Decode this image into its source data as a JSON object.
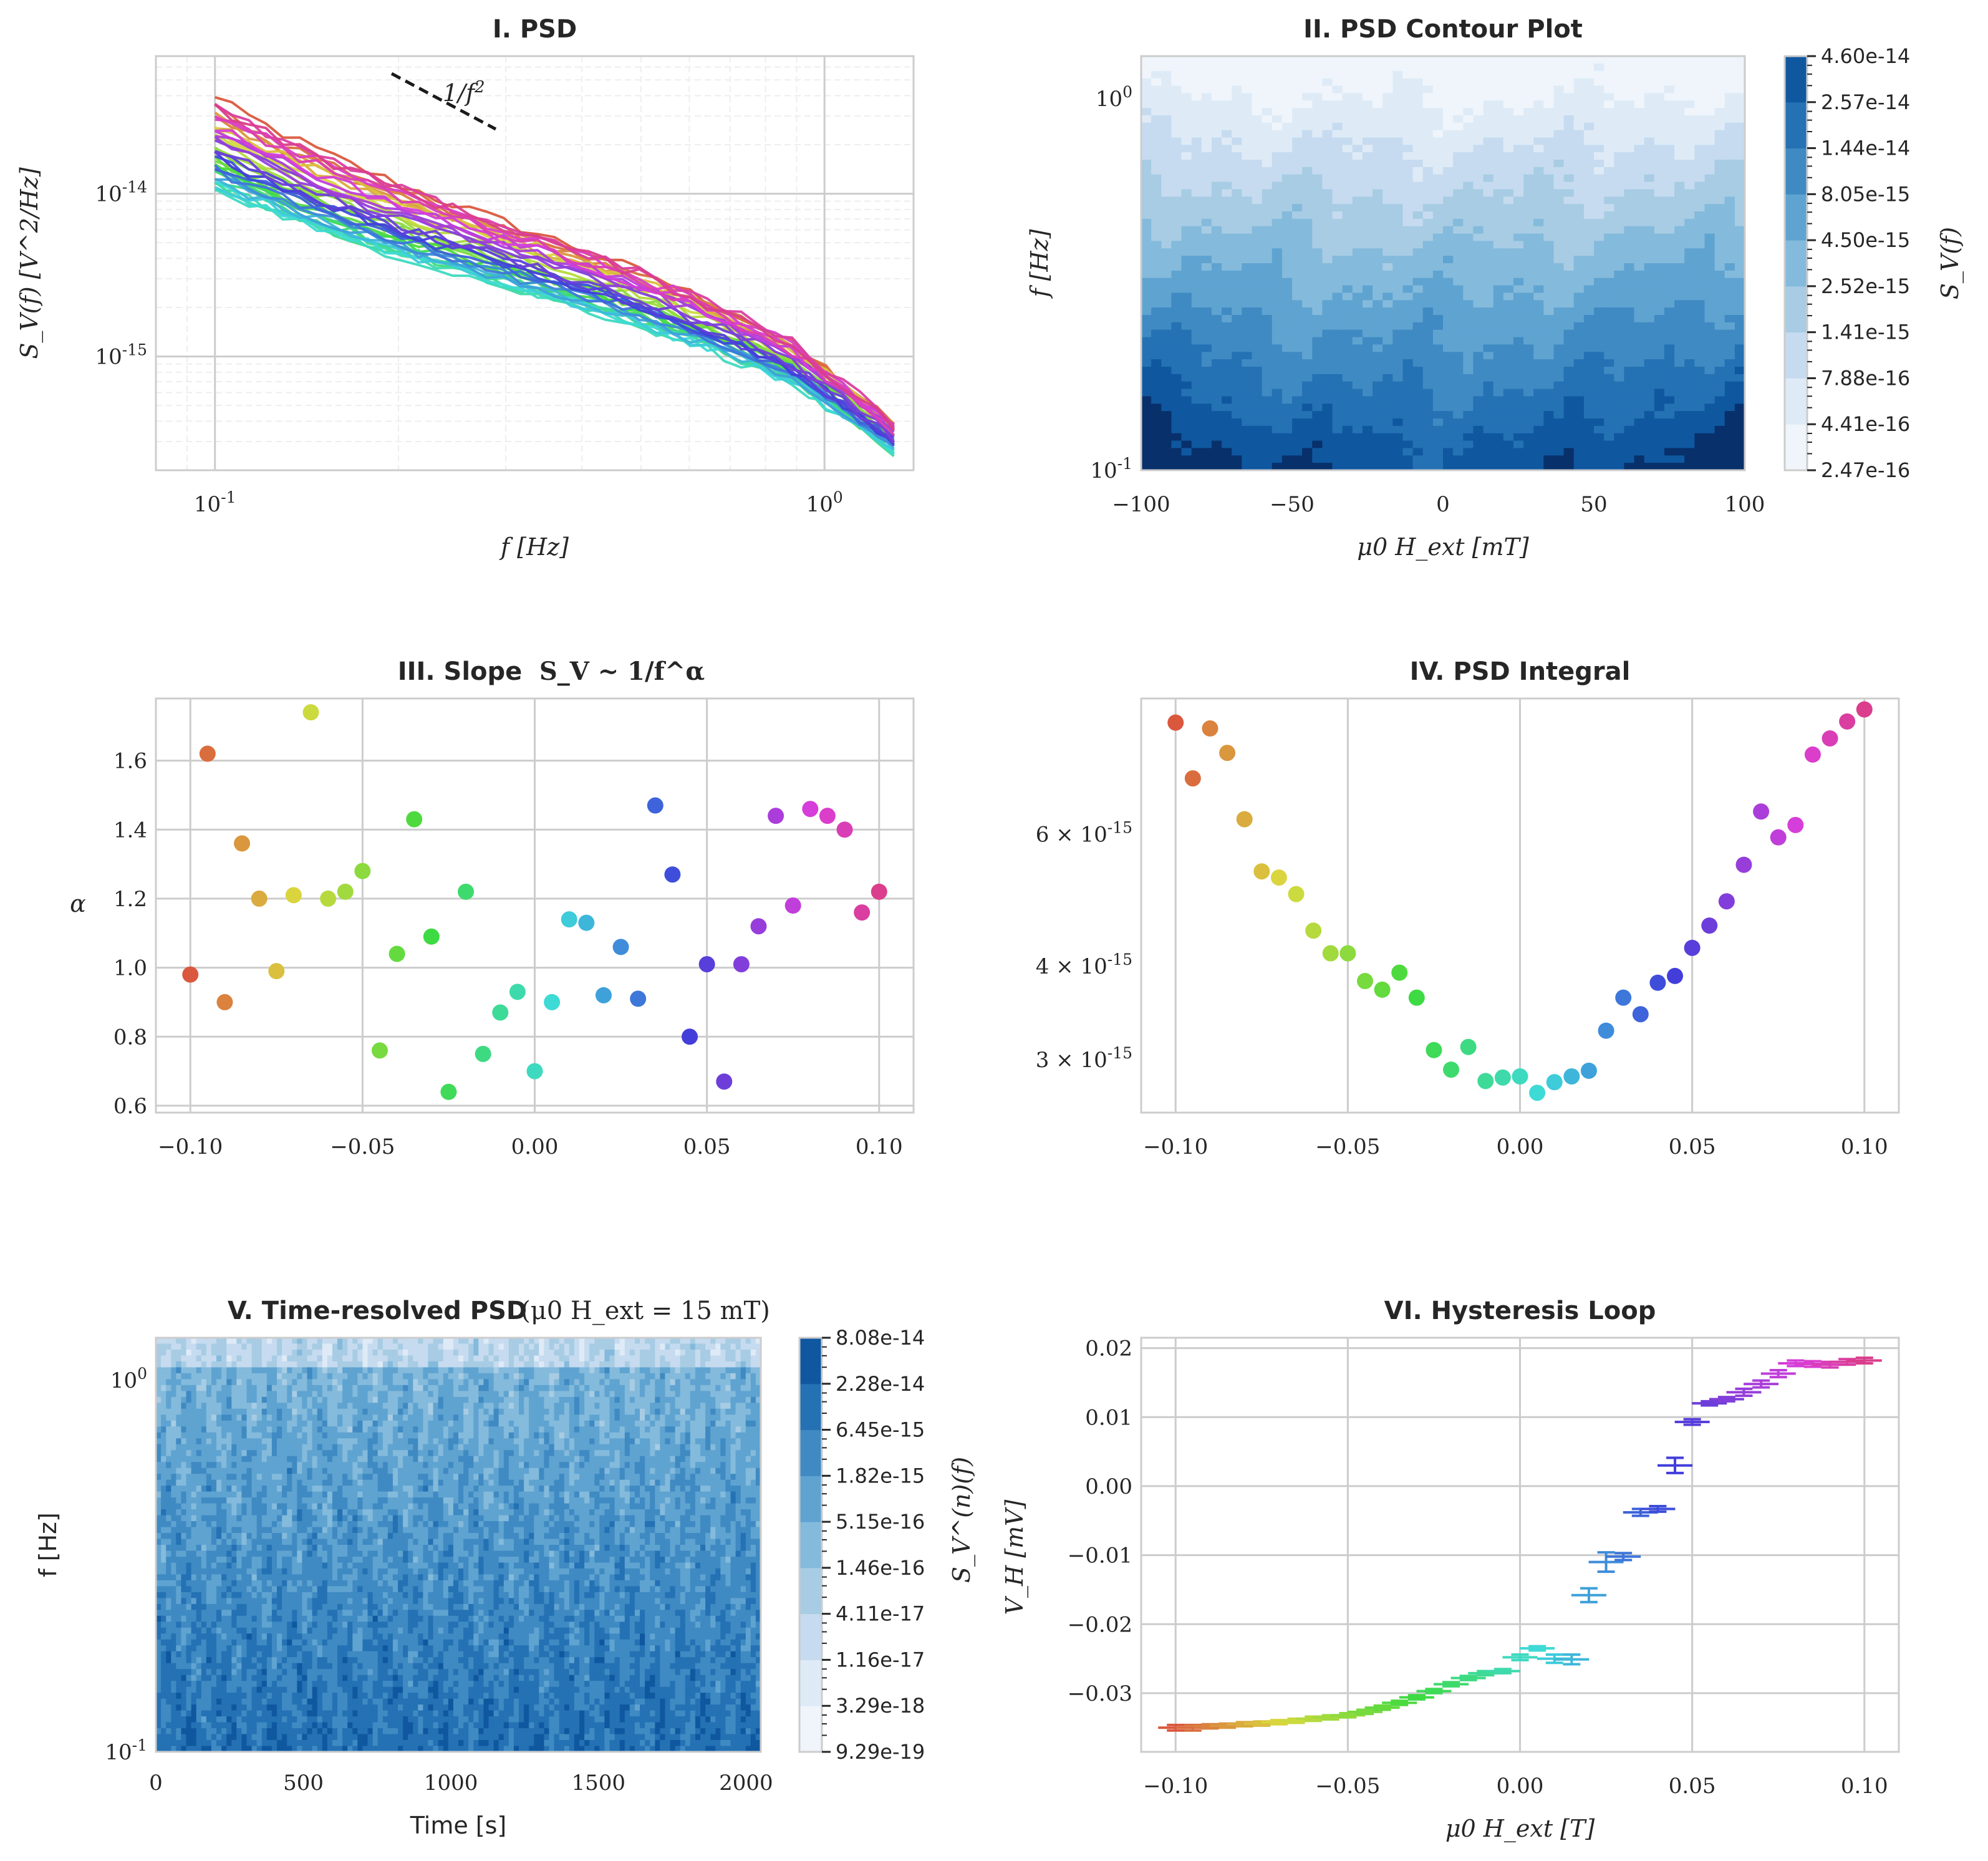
{
  "chart_data": [
    {
      "id": "p1",
      "type": "line",
      "title": "I. PSD",
      "xlabel": "f [Hz]",
      "ylabel": "S_V(f) [V^2/Hz]",
      "xscale": "log",
      "yscale": "log",
      "xlim": [
        0.08,
        1.4
      ],
      "ylim": [
        2e-16,
        7e-14
      ],
      "xticks": [
        {
          "v": 0.1,
          "label": "10^-1"
        },
        {
          "v": 1,
          "label": "10^0"
        }
      ],
      "yticks": [
        {
          "v": 1e-15,
          "label": "10^-15"
        },
        {
          "v": 1e-14,
          "label": "10^-14"
        }
      ],
      "annotation": "1/f^2",
      "series_count": 41,
      "field_range_T": [
        -0.1,
        0.1
      ],
      "f_range_hz": [
        0.1,
        1.3
      ],
      "amplitude_at_0p1hz": {
        "min": 1.1e-14,
        "max": 4.1e-14
      },
      "amplitude_at_1p3hz": {
        "min": 3.3e-16,
        "max": 5.6e-16
      }
    },
    {
      "id": "p2",
      "type": "heatmap",
      "title": "II. PSD Contour Plot",
      "xlabel": "μ0 H_ext [mT]",
      "ylabel": "f [Hz]",
      "xlim": [
        -100,
        100
      ],
      "ylim": [
        0.1,
        1.3
      ],
      "yscale": "log",
      "xticks": [
        -100,
        -50,
        0,
        50,
        100
      ],
      "xtick_labels": [
        "−100",
        "−50",
        "0",
        "50",
        "100"
      ],
      "yticks": [
        {
          "v": 0.1,
          "label": "10^-1"
        },
        {
          "v": 1,
          "label": "10^0"
        }
      ],
      "colorbar_label": "S_V(f)",
      "colorbar_levels": [
        "2.47e-16",
        "4.41e-16",
        "7.88e-16",
        "1.41e-15",
        "2.52e-15",
        "4.50e-15",
        "8.05e-15",
        "1.44e-14",
        "2.57e-14",
        "4.60e-14"
      ]
    },
    {
      "id": "p3",
      "type": "scatter",
      "title": "III. Slope",
      "title_math": "S_V ~ 1/f^α",
      "xlabel": "",
      "ylabel": "α",
      "xlim": [
        -0.11,
        0.11
      ],
      "ylim": [
        0.58,
        1.78
      ],
      "xticks": [
        -0.1,
        -0.05,
        0.0,
        0.05,
        0.1
      ],
      "xtick_labels": [
        "−0.10",
        "−0.05",
        "0.00",
        "0.05",
        "0.10"
      ],
      "yticks": [
        0.6,
        0.8,
        1.0,
        1.2,
        1.4,
        1.6
      ],
      "ytick_labels": [
        "0.6",
        "0.8",
        "1.0",
        "1.2",
        "1.4",
        "1.6"
      ],
      "x": [
        -0.1,
        -0.095,
        -0.09,
        -0.085,
        -0.08,
        -0.075,
        -0.07,
        -0.065,
        -0.06,
        -0.055,
        -0.05,
        -0.045,
        -0.04,
        -0.035,
        -0.03,
        -0.025,
        -0.02,
        -0.015,
        -0.01,
        -0.005,
        0.0,
        0.005,
        0.01,
        0.015,
        0.02,
        0.025,
        0.03,
        0.035,
        0.04,
        0.045,
        0.05,
        0.055,
        0.06,
        0.065,
        0.07,
        0.075,
        0.08,
        0.085,
        0.09,
        0.095,
        0.1
      ],
      "y": [
        0.98,
        1.62,
        0.9,
        1.36,
        1.2,
        0.99,
        1.21,
        1.74,
        1.2,
        1.22,
        1.28,
        0.76,
        1.04,
        1.43,
        1.09,
        0.64,
        1.22,
        0.75,
        0.87,
        0.93,
        0.7,
        0.9,
        1.14,
        1.13,
        0.92,
        1.06,
        0.91,
        1.47,
        1.27,
        0.8,
        1.01,
        0.67,
        1.01,
        1.12,
        1.44,
        1.18,
        1.46,
        1.44,
        1.4,
        1.16,
        1.22
      ]
    },
    {
      "id": "p4",
      "type": "scatter",
      "title": "IV. PSD Integral",
      "xlabel": "",
      "ylabel": "",
      "yscale": "log",
      "xlim": [
        -0.11,
        0.11
      ],
      "ylim": [
        2.55e-15,
        9.1e-15
      ],
      "xticks": [
        -0.1,
        -0.05,
        0.0,
        0.05,
        0.1
      ],
      "xtick_labels": [
        "−0.10",
        "−0.05",
        "0.00",
        "0.05",
        "0.10"
      ],
      "yticks": [
        {
          "v": 3e-15,
          "label": "3 × 10^-15"
        },
        {
          "v": 4e-15,
          "label": "4 × 10^-15"
        },
        {
          "v": 6e-15,
          "label": "6 × 10^-15"
        }
      ],
      "x": [
        -0.1,
        -0.095,
        -0.09,
        -0.085,
        -0.08,
        -0.075,
        -0.07,
        -0.065,
        -0.06,
        -0.055,
        -0.05,
        -0.045,
        -0.04,
        -0.035,
        -0.03,
        -0.025,
        -0.02,
        -0.015,
        -0.01,
        -0.005,
        0.0,
        0.005,
        0.01,
        0.015,
        0.02,
        0.025,
        0.03,
        0.035,
        0.04,
        0.045,
        0.05,
        0.055,
        0.06,
        0.065,
        0.07,
        0.075,
        0.08,
        0.085,
        0.09,
        0.095,
        0.1
      ],
      "y": [
        8.45e-15,
        7.12e-15,
        8.3e-15,
        7.7e-15,
        6.28e-15,
        5.35e-15,
        5.25e-15,
        4.99e-15,
        4.46e-15,
        4.16e-15,
        4.16e-15,
        3.82e-15,
        3.72e-15,
        3.92e-15,
        3.63e-15,
        3.09e-15,
        2.91e-15,
        3.12e-15,
        2.81e-15,
        2.84e-15,
        2.85e-15,
        2.71e-15,
        2.8e-15,
        2.85e-15,
        2.9e-15,
        3.28e-15,
        3.63e-15,
        3.45e-15,
        3.8e-15,
        3.88e-15,
        4.23e-15,
        4.53e-15,
        4.88e-15,
        5.46e-15,
        6.43e-15,
        5.94e-15,
        6.17e-15,
        7.66e-15,
        8.05e-15,
        8.48e-15,
        8.8e-15
      ]
    },
    {
      "id": "p5",
      "type": "heatmap",
      "title": "V. Time-resolved PSD",
      "title_math": "(μ0 H_ext = 15 mT)",
      "xlabel": "Time [s]",
      "ylabel": "f [Hz]",
      "xlim": [
        0,
        2050
      ],
      "ylim": [
        0.1,
        1.3
      ],
      "yscale": "log",
      "xticks": [
        0,
        500,
        1000,
        1500,
        2000
      ],
      "xtick_labels": [
        "0",
        "500",
        "1000",
        "1500",
        "2000"
      ],
      "yticks": [
        {
          "v": 0.1,
          "label": "10^-1"
        },
        {
          "v": 1,
          "label": "10^0"
        }
      ],
      "colorbar_label": "S_V^(n)(f)",
      "colorbar_levels": [
        "9.29e-19",
        "3.29e-18",
        "1.16e-17",
        "4.11e-17",
        "1.46e-16",
        "5.15e-16",
        "1.82e-15",
        "6.45e-15",
        "2.28e-14",
        "8.08e-14"
      ]
    },
    {
      "id": "p6",
      "type": "scatter",
      "title": "VI. Hysteresis Loop",
      "xlabel": "μ0 H_ext [T]",
      "ylabel": "V_H [mV]",
      "xlim": [
        -0.11,
        0.11
      ],
      "ylim": [
        -0.0385,
        0.0215
      ],
      "xticks": [
        -0.1,
        -0.05,
        0.0,
        0.05,
        0.1
      ],
      "xtick_labels": [
        "−0.10",
        "−0.05",
        "0.00",
        "0.05",
        "0.10"
      ],
      "yticks": [
        -0.03,
        -0.02,
        -0.01,
        0.0,
        0.01,
        0.02
      ],
      "ytick_labels": [
        "−0.03",
        "−0.02",
        "−0.01",
        "0.00",
        "0.01",
        "0.02"
      ],
      "x": [
        -0.1,
        -0.095,
        -0.09,
        -0.085,
        -0.08,
        -0.075,
        -0.07,
        -0.065,
        -0.06,
        -0.055,
        -0.05,
        -0.045,
        -0.04,
        -0.035,
        -0.03,
        -0.025,
        -0.02,
        -0.015,
        -0.01,
        -0.005,
        0.0,
        0.005,
        0.01,
        0.015,
        0.02,
        0.025,
        0.03,
        0.035,
        0.04,
        0.045,
        0.05,
        0.055,
        0.06,
        0.065,
        0.07,
        0.075,
        0.08,
        0.085,
        0.09,
        0.095,
        0.1
      ],
      "y": [
        -0.035,
        -0.035,
        -0.0348,
        -0.0347,
        -0.0345,
        -0.0344,
        -0.0342,
        -0.034,
        -0.0337,
        -0.0335,
        -0.0332,
        -0.0327,
        -0.0321,
        -0.0314,
        -0.0306,
        -0.0297,
        -0.0287,
        -0.0278,
        -0.0271,
        -0.0268,
        -0.0248,
        -0.0235,
        -0.025,
        -0.0251,
        -0.0158,
        -0.011,
        -0.0102,
        -0.0038,
        -0.0033,
        0.003,
        0.0093,
        0.012,
        0.0126,
        0.0136,
        0.0148,
        0.0163,
        0.0178,
        0.0177,
        0.0176,
        0.018,
        0.0182
      ],
      "err": [
        0.0004,
        0.0004,
        0.0003,
        0.0003,
        0.0003,
        0.0003,
        0.0003,
        0.0003,
        0.0003,
        0.0003,
        0.0003,
        0.0003,
        0.0003,
        0.0003,
        0.0003,
        0.0003,
        0.0003,
        0.0003,
        0.0003,
        0.0003,
        0.0004,
        0.0003,
        0.0006,
        0.0007,
        0.001,
        0.0014,
        0.0005,
        0.0005,
        0.0004,
        0.0011,
        0.0004,
        0.0003,
        0.0003,
        0.0005,
        0.0005,
        0.0005,
        0.0004,
        0.0004,
        0.0004,
        0.0004,
        0.0004
      ]
    }
  ]
}
